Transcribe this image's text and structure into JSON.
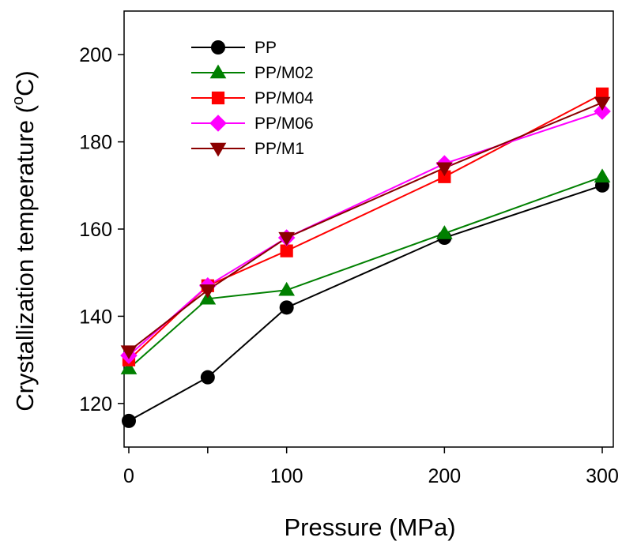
{
  "chart_data": {
    "type": "line",
    "xlabel": "Pressure (MPa)",
    "ylabel_main": "Crystallization temperature (",
    "ylabel_sup": "o",
    "ylabel_end": "C)",
    "xlim": [
      -3,
      307
    ],
    "ylim": [
      110,
      210
    ],
    "x_ticks": [
      0,
      50,
      100,
      200,
      300
    ],
    "x_tick_labels": [
      "0",
      "",
      "100",
      "200",
      "300"
    ],
    "y_ticks": [
      120,
      140,
      160,
      180,
      200
    ],
    "y_tick_labels": [
      "120",
      "140",
      "160",
      "180",
      "200"
    ],
    "grid": false,
    "legend_position": "top-left",
    "x": [
      0,
      50,
      100,
      200,
      300
    ],
    "series": [
      {
        "name": "PP",
        "values": [
          116,
          126,
          142,
          158,
          170
        ],
        "color": "#000000",
        "marker": "circle"
      },
      {
        "name": "PP/M02",
        "values": [
          128,
          144,
          146,
          159,
          172
        ],
        "color": "#008000",
        "marker": "triangle-up"
      },
      {
        "name": "PP/M04",
        "values": [
          130,
          147,
          155,
          172,
          191
        ],
        "color": "#ff0000",
        "marker": "square"
      },
      {
        "name": "PP/M06",
        "values": [
          131,
          147,
          158,
          175,
          187
        ],
        "color": "#ff00ff",
        "marker": "diamond"
      },
      {
        "name": "PP/M1",
        "values": [
          132,
          146,
          158,
          174,
          189
        ],
        "color": "#8b0000",
        "marker": "triangle-down"
      }
    ]
  }
}
